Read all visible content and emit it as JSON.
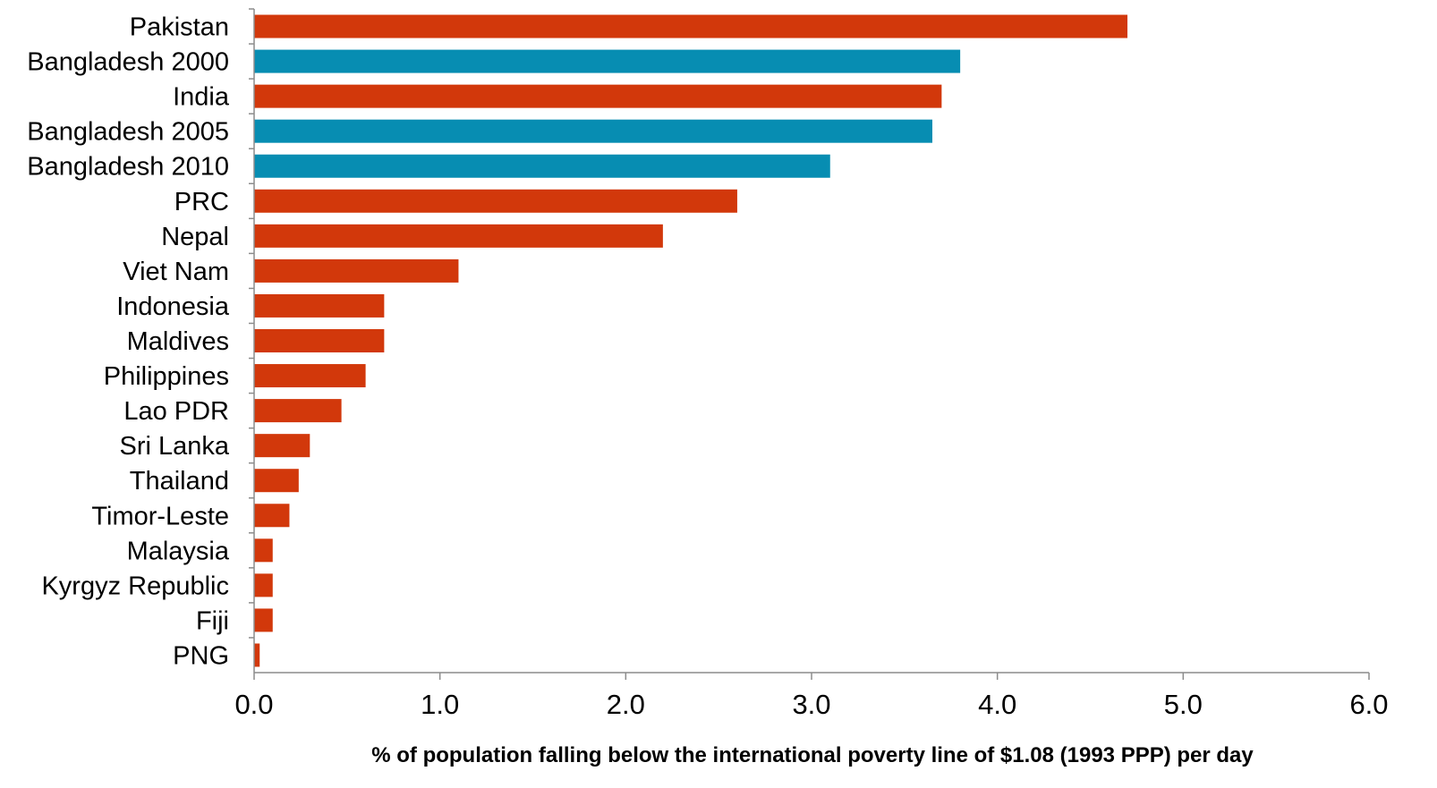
{
  "chart_data": {
    "type": "bar",
    "orientation": "horizontal",
    "categories": [
      "Pakistan",
      "Bangladesh 2000",
      "India",
      "Bangladesh 2005",
      "Bangladesh 2010",
      "PRC",
      "Nepal",
      "Viet Nam",
      "Indonesia",
      "Maldives",
      "Philippines",
      "Lao PDR",
      "Sri Lanka",
      "Thailand",
      "Timor-Leste",
      "Malaysia",
      "Kyrgyz Republic",
      "Fiji",
      "PNG"
    ],
    "values": [
      4.7,
      3.8,
      3.7,
      3.65,
      3.1,
      2.6,
      2.2,
      1.1,
      0.7,
      0.7,
      0.6,
      0.47,
      0.3,
      0.24,
      0.19,
      0.1,
      0.1,
      0.1,
      0.03
    ],
    "highlight_categories": [
      "Bangladesh 2000",
      "Bangladesh 2005",
      "Bangladesh 2010"
    ],
    "xlabel": "% of population falling below the international poverty line of $1.08 (1993 PPP) per day",
    "ylabel": "",
    "xlim": [
      0,
      6
    ],
    "xticks": [
      "0.0",
      "1.0",
      "2.0",
      "3.0",
      "4.0",
      "5.0",
      "6.0"
    ],
    "grid": false,
    "legend": "none",
    "colors": {
      "default_bar": "#d2380b",
      "highlight_bar": "#078db2",
      "axis": "#8c8c8c",
      "text": "#000000"
    }
  }
}
